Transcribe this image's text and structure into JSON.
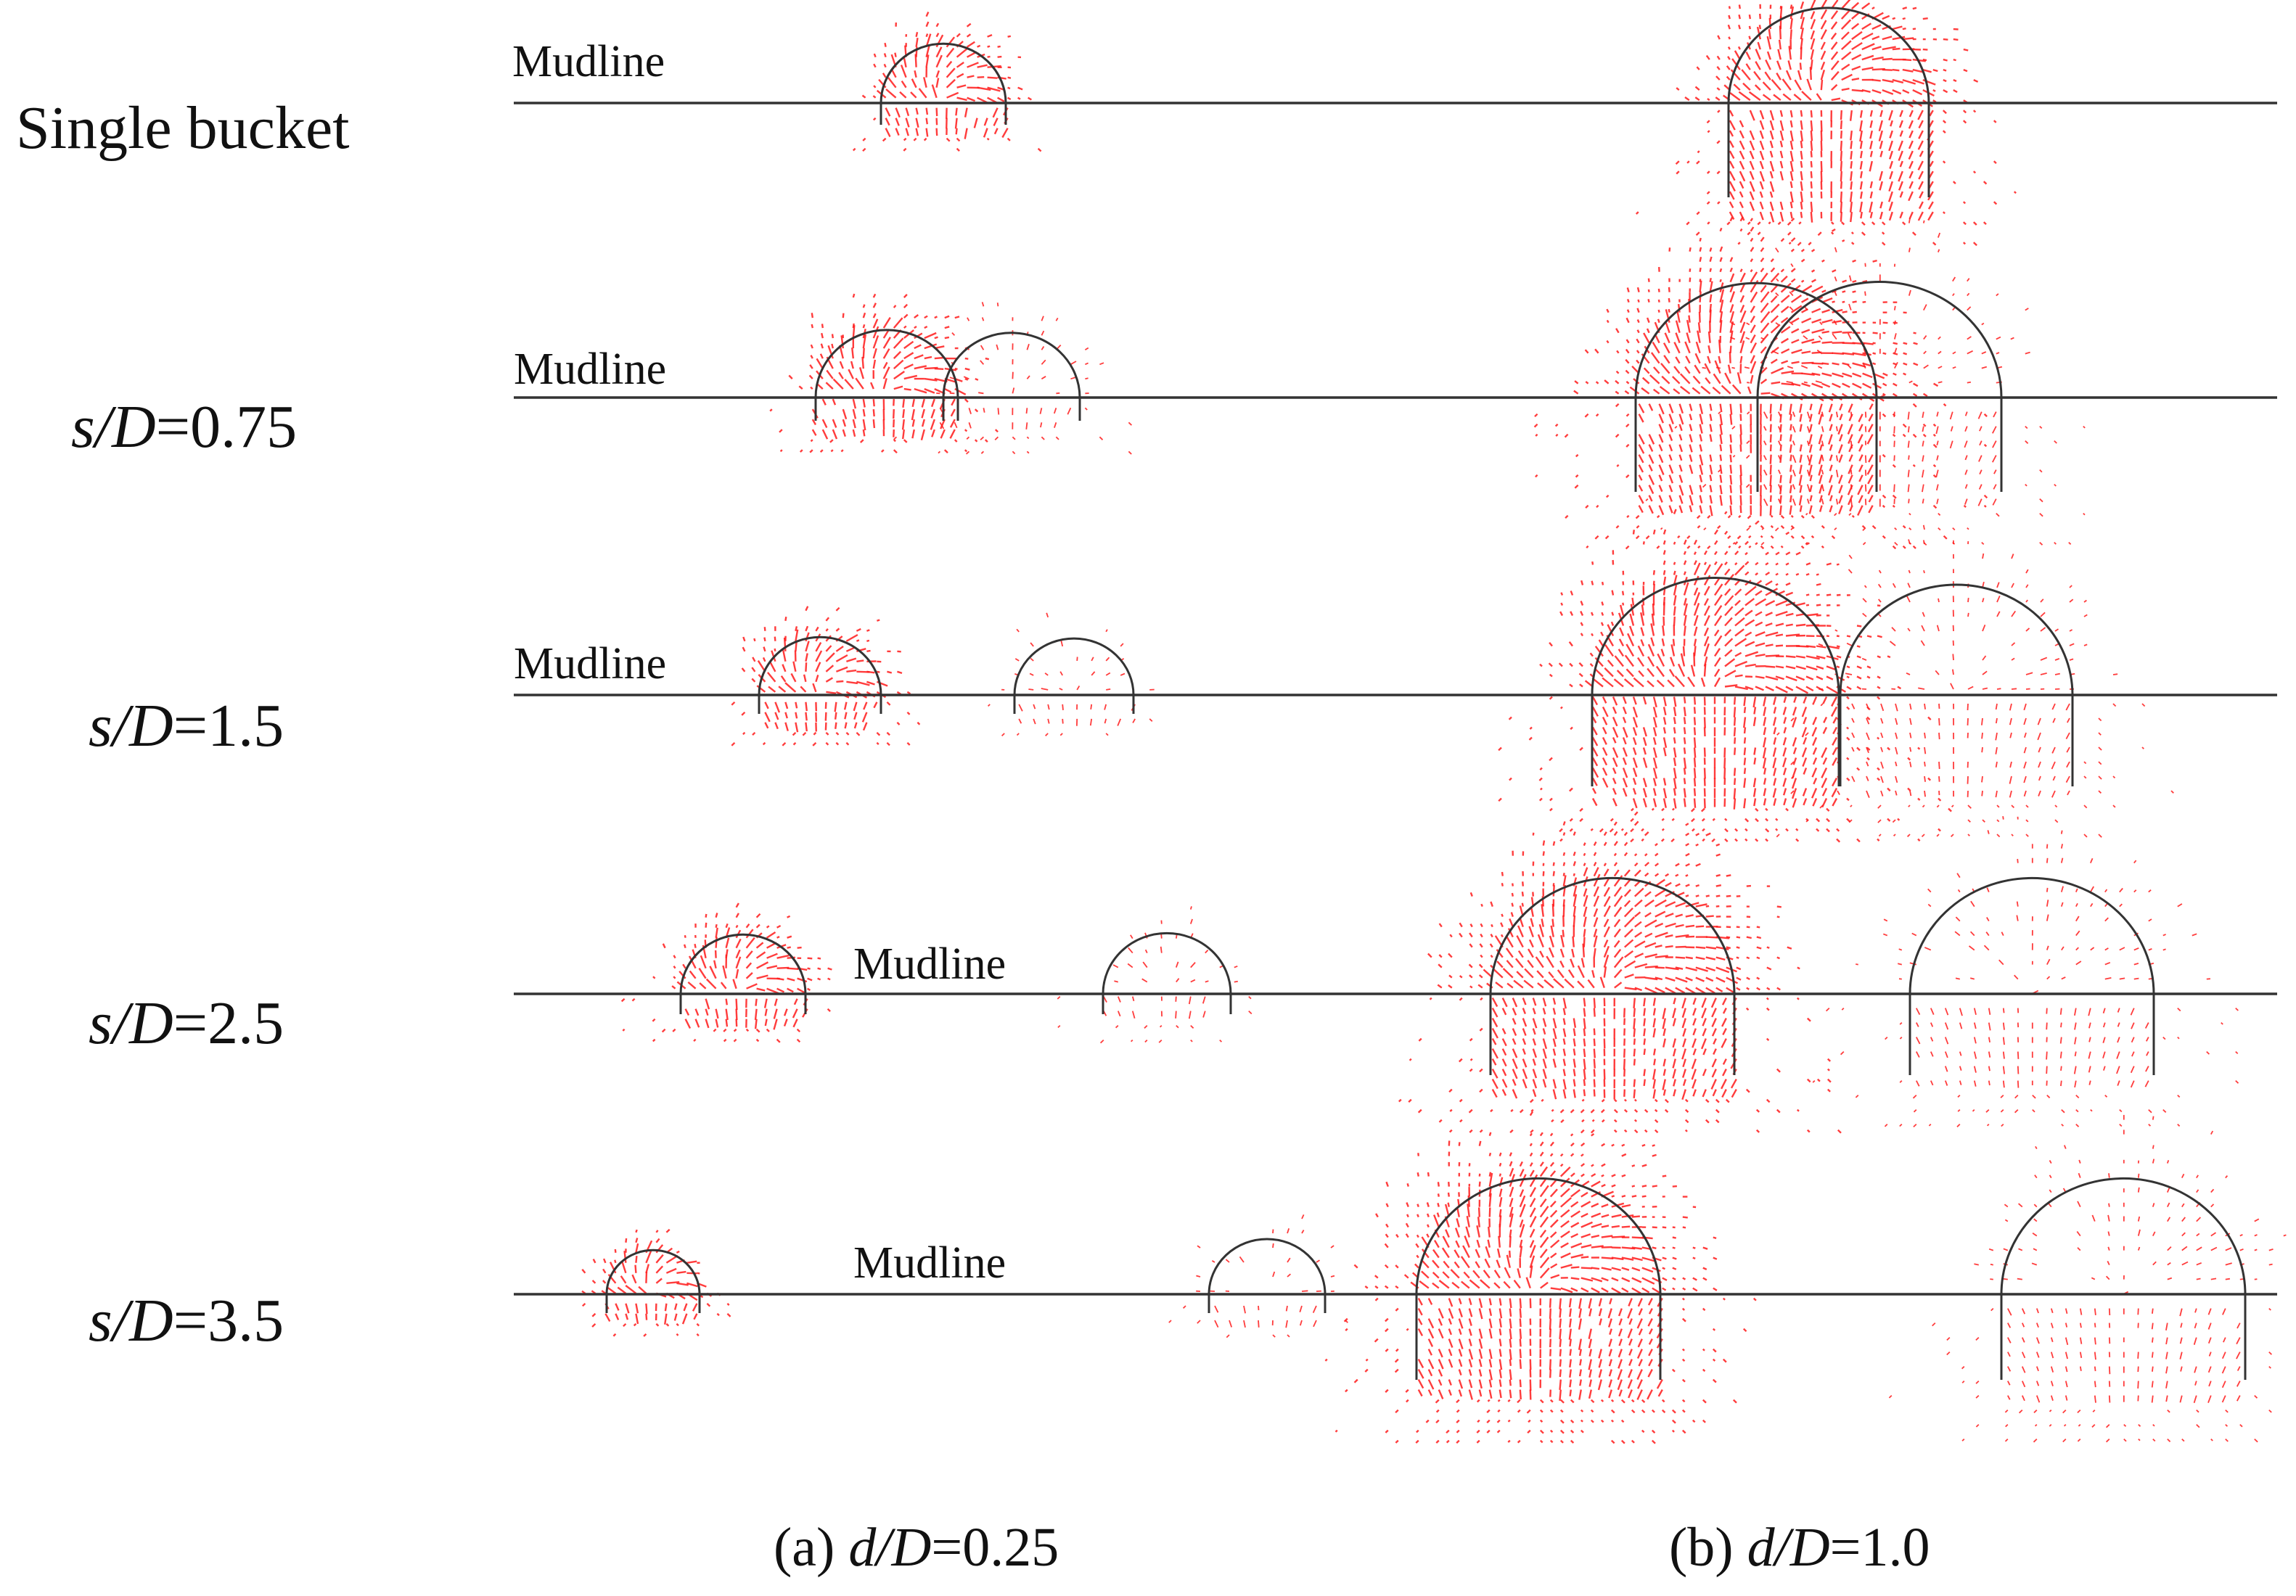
{
  "rows": [
    {
      "label": "Single bucket"
    },
    {
      "label_var": "s/D",
      "label_val": "=0.75"
    },
    {
      "label_var": "s/D",
      "label_val": "=1.5"
    },
    {
      "label_var": "s/D",
      "label_val": "=2.5"
    },
    {
      "label_var": "s/D",
      "label_val": "=3.5"
    }
  ],
  "mudline_label": "Mudline",
  "captions": {
    "a": {
      "prefix": "(a) ",
      "var": "d/D",
      "val": "=0.25"
    },
    "b": {
      "prefix": "(b) ",
      "var": "d/D",
      "val": "=1.0"
    }
  },
  "colors": {
    "vector": "#ff1a1a",
    "mudline": "#333333",
    "bucket": "#333333"
  }
}
